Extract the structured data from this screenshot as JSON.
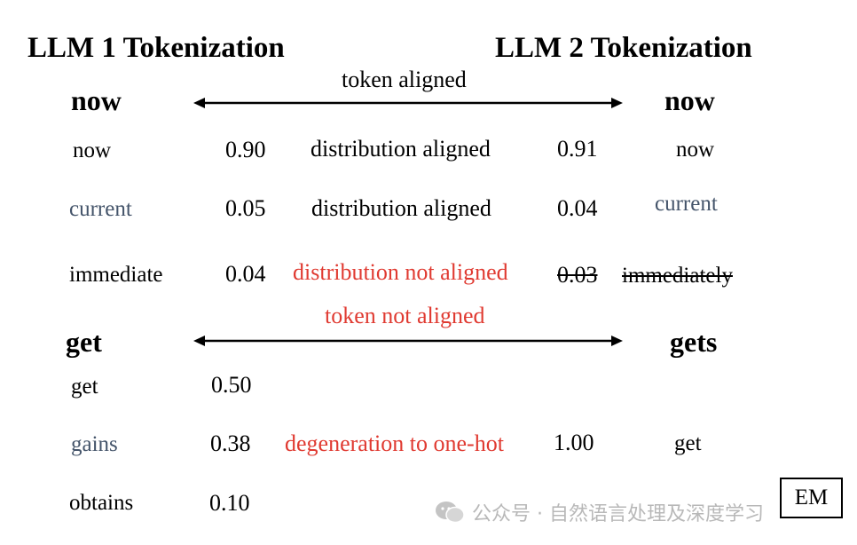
{
  "titles": {
    "llm1": "LLM 1 Tokenization",
    "llm2": "LLM 2 Tokenization"
  },
  "sections": [
    {
      "left_head": "now",
      "right_head": "now",
      "arrow_label": "token aligned",
      "arrow_label_color": "#000000"
    },
    {
      "left_head": "get",
      "right_head": "gets",
      "arrow_label": "token not aligned",
      "arrow_label_color": "#e03a31"
    }
  ],
  "rows_section1": [
    {
      "left_token": "now",
      "left_prob": "0.90",
      "middle": "distribution aligned",
      "right_prob": "0.91",
      "right_token": "now"
    },
    {
      "left_token": "current",
      "left_prob": "0.05",
      "middle": "distribution aligned",
      "right_prob": "0.04",
      "right_token": "current"
    },
    {
      "left_token": "immediate",
      "left_prob": "0.04",
      "middle": "distribution not aligned",
      "right_prob": "0.03",
      "right_token": "immediately"
    }
  ],
  "rows_section2": [
    {
      "left_token": "get",
      "left_prob": "0.50"
    },
    {
      "left_token": "gains",
      "left_prob": "0.38",
      "middle": "degeneration to one-hot",
      "right_prob": "1.00",
      "right_token": "get"
    },
    {
      "left_token": "obtains",
      "left_prob": "0.10"
    }
  ],
  "colors": {
    "red": "#e03a31",
    "gray_text": "#44546a",
    "watermark": "#b8b8b8"
  },
  "badge": "EM",
  "watermark": {
    "icon": "wechat-icon",
    "text": "公众号 · 自然语言处理及深度学习"
  }
}
